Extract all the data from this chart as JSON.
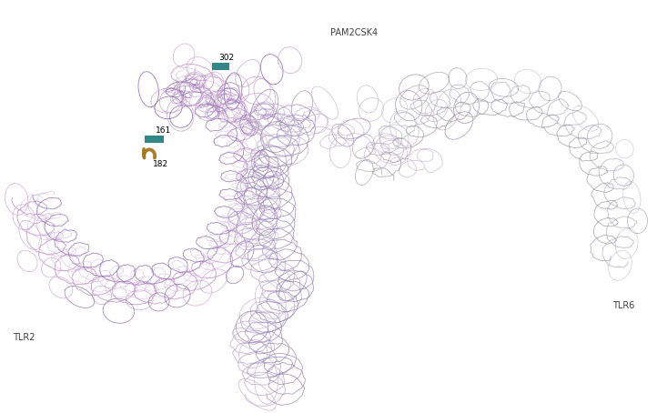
{
  "background_color": "#ffffff",
  "border_color": "#cccccc",
  "tlr2_color1": "#c8a0d0",
  "tlr2_color2": "#8060a8",
  "center_color1": "#c0b0d0",
  "center_color2": "#9080b0",
  "tlr6_color1": "#b8b8c8",
  "tlr6_color2": "#909098",
  "tlr2_label": "TLR2",
  "tlr6_label": "TLR6",
  "pam2csk4_label": "PAM2CSK4",
  "site_302_label": "302",
  "site_161_label": "161",
  "site_182_label": "182",
  "site_302_color": "#2a8080",
  "site_161_color": "#2a8080",
  "site_182_color": "#a07820",
  "label_fontsize": 7,
  "annotation_fontsize": 6.5
}
